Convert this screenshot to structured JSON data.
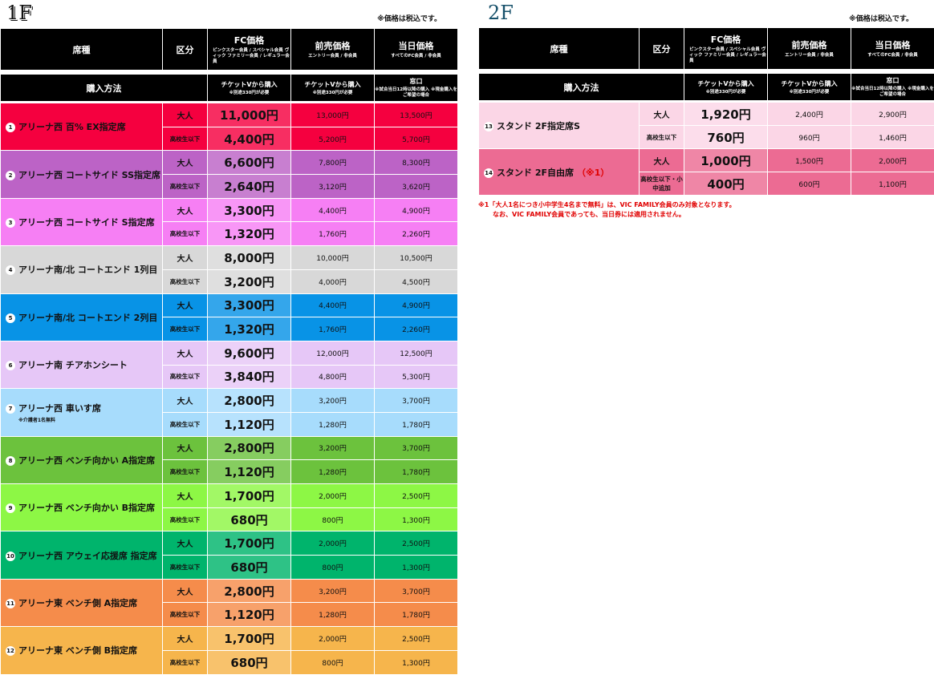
{
  "floor1": {
    "label": "1F",
    "tax_note": "※価格は税込です。",
    "header": {
      "seat_type": "席種",
      "category": "区分",
      "fc_title": "FC価格",
      "fc_sub": "ピンクスター会員 / スペシャル会員 ヴィック ファミリー会員 / レギュラー会員",
      "presale_title": "前売価格",
      "presale_sub": "エントリー会員 / 非会員",
      "sameday_title": "当日価格",
      "sameday_sub": "すべてのFC会員 / 非会員"
    },
    "purchase": {
      "label": "購入方法",
      "fc_title": "チケットVから購入",
      "fc_sub": "※別途330円が必要",
      "presale_title": "チケットVから購入",
      "presale_sub": "※別途330円が必要",
      "sameday_title": "窓口",
      "sameday_sub": "※試合当日12時以降の購入 ※現金購入をご希望の場合"
    },
    "rows": [
      {
        "num": "1",
        "name": "アリーナ西 百% EX指定席",
        "sub": "",
        "color": "#f5003f",
        "adult_label": "大人",
        "adult_fc": "11,000円",
        "adult_pre": "13,000円",
        "adult_day": "13,500円",
        "child_label": "高校生以下",
        "child_fc": "4,400円",
        "child_pre": "5,200円",
        "child_day": "5,700円"
      },
      {
        "num": "2",
        "name": "アリーナ西 コートサイド SS指定席",
        "sub": "",
        "color": "#bc63c6",
        "adult_label": "大人",
        "adult_fc": "6,600円",
        "adult_pre": "7,800円",
        "adult_day": "8,300円",
        "child_label": "高校生以下",
        "child_fc": "2,640円",
        "child_pre": "3,120円",
        "child_day": "3,620円"
      },
      {
        "num": "3",
        "name": "アリーナ西 コートサイド S指定席",
        "sub": "",
        "color": "#f67ff4",
        "adult_label": "大人",
        "adult_fc": "3,300円",
        "adult_pre": "4,400円",
        "adult_day": "4,900円",
        "child_label": "高校生以下",
        "child_fc": "1,320円",
        "child_pre": "1,760円",
        "child_day": "2,260円"
      },
      {
        "num": "4",
        "name": "アリーナ南/北 コートエンド 1列目",
        "sub": "",
        "color": "#d8d8d8",
        "adult_label": "大人",
        "adult_fc": "8,000円",
        "adult_pre": "10,000円",
        "adult_day": "10,500円",
        "child_label": "高校生以下",
        "child_fc": "3,200円",
        "child_pre": "4,000円",
        "child_day": "4,500円"
      },
      {
        "num": "5",
        "name": "アリーナ南/北 コートエンド 2列目",
        "sub": "",
        "color": "#0893e6",
        "adult_label": "大人",
        "adult_fc": "3,300円",
        "adult_pre": "4,400円",
        "adult_day": "4,900円",
        "child_label": "高校生以下",
        "child_fc": "1,320円",
        "child_pre": "1,760円",
        "child_day": "2,260円"
      },
      {
        "num": "6",
        "name": "アリーナ南 チアホンシート",
        "sub": "",
        "color": "#e6c7f7",
        "adult_label": "大人",
        "adult_fc": "9,600円",
        "adult_pre": "12,000円",
        "adult_day": "12,500円",
        "child_label": "高校生以下",
        "child_fc": "3,840円",
        "child_pre": "4,800円",
        "child_day": "5,300円"
      },
      {
        "num": "7",
        "name": "アリーナ西 車いす席",
        "sub": "※介護者1名無料",
        "color": "#a7dcfc",
        "adult_label": "大人",
        "adult_fc": "2,800円",
        "adult_pre": "3,200円",
        "adult_day": "3,700円",
        "child_label": "高校生以下",
        "child_fc": "1,120円",
        "child_pre": "1,280円",
        "child_day": "1,780円"
      },
      {
        "num": "8",
        "name": "アリーナ西 ベンチ向かい A指定席",
        "sub": "",
        "color": "#6cc23d",
        "adult_label": "大人",
        "adult_fc": "2,800円",
        "adult_pre": "3,200円",
        "adult_day": "3,700円",
        "child_label": "高校生以下",
        "child_fc": "1,120円",
        "child_pre": "1,280円",
        "child_day": "1,780円"
      },
      {
        "num": "9",
        "name": "アリーナ西 ベンチ向かい B指定席",
        "sub": "",
        "color": "#8df745",
        "adult_label": "大人",
        "adult_fc": "1,700円",
        "adult_pre": "2,000円",
        "adult_day": "2,500円",
        "child_label": "高校生以下",
        "child_fc": "680円",
        "child_pre": "800円",
        "child_day": "1,300円"
      },
      {
        "num": "10",
        "name": "アリーナ西 アウェイ応援席 指定席",
        "sub": "",
        "color": "#00b46c",
        "adult_label": "大人",
        "adult_fc": "1,700円",
        "adult_pre": "2,000円",
        "adult_day": "2,500円",
        "child_label": "高校生以下",
        "child_fc": "680円",
        "child_pre": "800円",
        "child_day": "1,300円"
      },
      {
        "num": "11",
        "name": "アリーナ東 ベンチ側 A指定席",
        "sub": "",
        "color": "#f58c4b",
        "adult_label": "大人",
        "adult_fc": "2,800円",
        "adult_pre": "3,200円",
        "adult_day": "3,700円",
        "child_label": "高校生以下",
        "child_fc": "1,120円",
        "child_pre": "1,280円",
        "child_day": "1,780円"
      },
      {
        "num": "12",
        "name": "アリーナ東 ベンチ側 B指定席",
        "sub": "",
        "color": "#f6b54c",
        "adult_label": "大人",
        "adult_fc": "1,700円",
        "adult_pre": "2,000円",
        "adult_day": "2,500円",
        "child_label": "高校生以下",
        "child_fc": "680円",
        "child_pre": "800円",
        "child_day": "1,300円"
      }
    ]
  },
  "floor2": {
    "label": "2F",
    "tax_note": "※価格は税込です。",
    "header": {
      "seat_type": "席種",
      "category": "区分",
      "fc_title": "FC価格",
      "fc_sub": "ピンクスター会員 / スペシャル会員 ヴィック ファミリー会員 / レギュラー会員",
      "presale_title": "前売価格",
      "presale_sub": "エントリー会員 / 非会員",
      "sameday_title": "当日価格",
      "sameday_sub": "すべてのFC会員 / 非会員"
    },
    "purchase": {
      "label": "購入方法",
      "fc_title": "チケットVから購入",
      "fc_sub": "※別途330円が必要",
      "presale_title": "チケットVから購入",
      "presale_sub": "※別途330円が必要",
      "sameday_title": "窓口",
      "sameday_sub": "※試合当日12時以降の購入 ※現金購入をご希望の場合"
    },
    "rows": [
      {
        "num": "13",
        "name": "スタンド 2F指定席S",
        "mark": "",
        "color": "#fbd6e6",
        "adult_label": "大人",
        "adult_fc": "1,920円",
        "adult_pre": "2,400円",
        "adult_day": "2,900円",
        "child_label": "高校生以下",
        "child_fc": "760円",
        "child_pre": "960円",
        "child_day": "1,460円"
      },
      {
        "num": "14",
        "name": "スタンド 2F自由席",
        "mark": "（※1）",
        "color": "#ec6b93",
        "adult_label": "大人",
        "adult_fc": "1,000円",
        "adult_pre": "1,500円",
        "adult_day": "2,000円",
        "child_label": "高校生以下・小中追加",
        "child_fc": "400円",
        "child_pre": "600円",
        "child_day": "1,100円"
      }
    ],
    "footnote_line1": "※1「大人1名につき小中学生4名まで無料」は、VIC FAMILY会員のみ対象となります。",
    "footnote_line2": "なお、VIC FAMILY会員であっても、当日券には適用されません。"
  }
}
